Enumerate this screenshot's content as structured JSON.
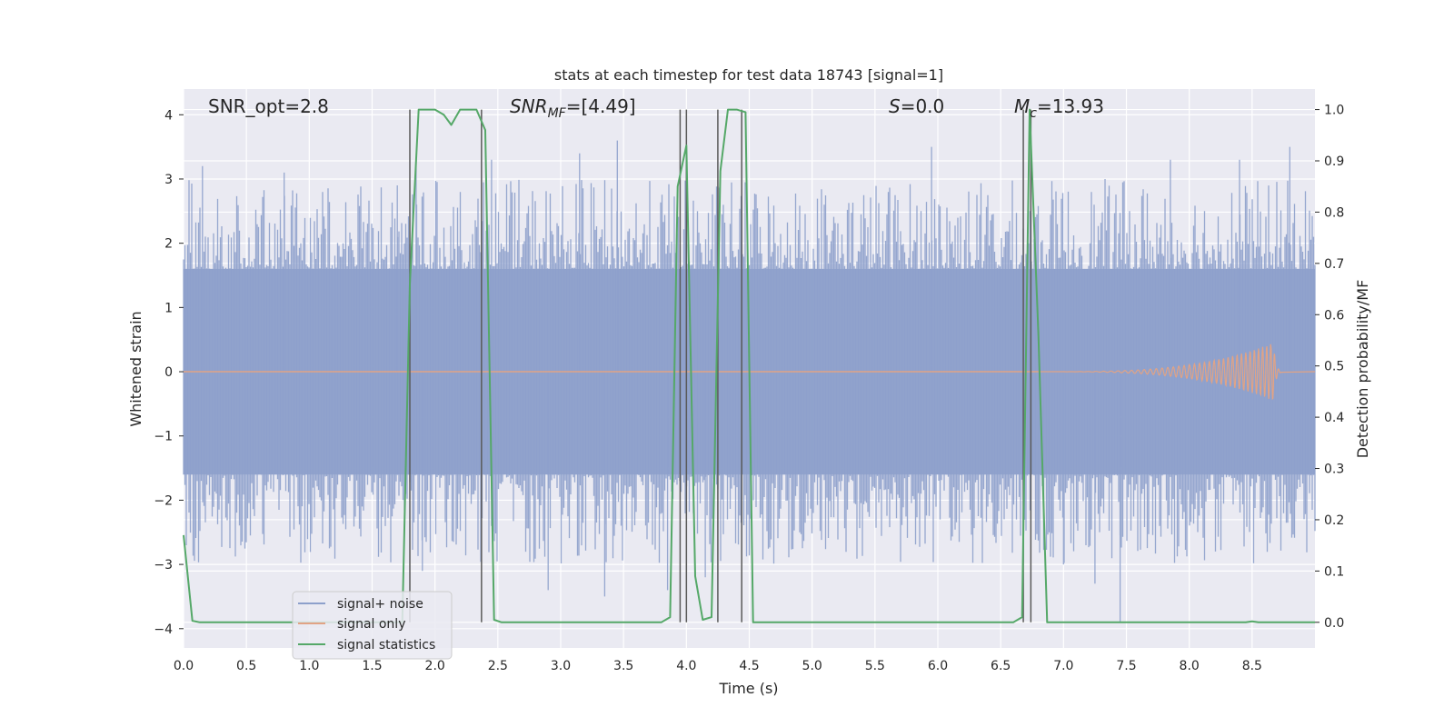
{
  "chart_data": {
    "type": "line",
    "title": "stats at each timestep for test data 18743 [signal=1]",
    "xlabel": "Time (s)",
    "ylabel_left": "Whitened strain",
    "ylabel_right": "Detection probability/MF",
    "xlim": [
      0.0,
      9.0
    ],
    "ylim_left": [
      -4.3,
      4.4
    ],
    "ylim_right": [
      -0.05,
      1.04
    ],
    "x_ticks": [
      "0.0",
      "0.5",
      "1.0",
      "1.5",
      "2.0",
      "2.5",
      "3.0",
      "3.5",
      "4.0",
      "4.5",
      "5.0",
      "5.5",
      "6.0",
      "6.5",
      "7.0",
      "7.5",
      "8.0",
      "8.5"
    ],
    "y_left_ticks": [
      "4",
      "3",
      "2",
      "1",
      "0",
      "−1",
      "−2",
      "−3",
      "−4"
    ],
    "y_right_ticks": [
      "1.0",
      "0.9",
      "0.8",
      "0.7",
      "0.6",
      "0.5",
      "0.4",
      "0.3",
      "0.2",
      "0.1",
      "0.0"
    ],
    "grid": true,
    "legend_position": "lower-left",
    "annotations": {
      "snr_opt": "SNR_opt=2.8",
      "snr_mf_base": "SNR",
      "snr_mf_sub": "MF",
      "snr_mf_value": "=[4.49]",
      "s_sym": "S",
      "s_value": "=0.0",
      "mc_sym": "M",
      "mc_sub": "c",
      "mc_value": "=13.93"
    },
    "series": [
      {
        "name": "signal+ noise",
        "axis": "left",
        "color": "#8da0cb",
        "kind": "noise-band",
        "core_amplitude": 1.6,
        "peaks": [
          [
            0.15,
            3.2
          ],
          [
            0.8,
            3.1
          ],
          [
            1.7,
            2.9
          ],
          [
            1.85,
            3.3
          ],
          [
            2.45,
            3.3
          ],
          [
            3.15,
            3.4
          ],
          [
            3.45,
            3.6
          ],
          [
            4.0,
            3.5
          ],
          [
            5.95,
            3.5
          ],
          [
            7.85,
            3.3
          ],
          [
            8.4,
            3.3
          ],
          [
            8.8,
            3.5
          ]
        ],
        "troughs": [
          [
            1.9,
            -3.1
          ],
          [
            2.45,
            -2.4
          ],
          [
            2.9,
            -3.4
          ],
          [
            3.35,
            -3.5
          ],
          [
            3.85,
            -3.4
          ],
          [
            4.15,
            -3.2
          ],
          [
            7.45,
            -3.9
          ],
          [
            7.0,
            -3.0
          ],
          [
            7.25,
            -3.3
          ]
        ]
      },
      {
        "name": "signal only",
        "axis": "left",
        "color": "#e1a385",
        "kind": "chirp",
        "start": 6.8,
        "peak_time": 8.67,
        "peak_amplitude": 0.45
      },
      {
        "name": "signal statistics",
        "axis": "right",
        "color": "#55a868",
        "x": [
          0.0,
          0.07,
          0.13,
          1.74,
          1.8,
          1.87,
          2.0,
          2.07,
          2.13,
          2.2,
          2.33,
          2.4,
          2.47,
          2.53,
          3.8,
          3.87,
          3.93,
          4.0,
          4.07,
          4.13,
          4.2,
          4.27,
          4.33,
          4.4,
          4.47,
          4.53,
          4.6,
          6.6,
          6.67,
          6.73,
          6.8,
          6.87,
          8.45,
          8.5,
          8.55,
          9.0
        ],
        "values": [
          0.17,
          0.003,
          0.0,
          0.0,
          0.66,
          1.0,
          1.0,
          0.99,
          0.97,
          1.0,
          1.0,
          0.96,
          0.005,
          0.0,
          0.0,
          0.01,
          0.85,
          0.93,
          0.09,
          0.005,
          0.01,
          0.88,
          1.0,
          1.0,
          0.995,
          0.0,
          0.0,
          0.0,
          0.01,
          1.0,
          0.56,
          0.0,
          0.0,
          0.002,
          0.0,
          0.0
        ]
      }
    ],
    "vertical_lines": {
      "color": "#595959",
      "x": [
        1.8,
        2.37,
        3.95,
        4.0,
        4.25,
        4.44,
        6.68,
        6.74
      ]
    }
  }
}
